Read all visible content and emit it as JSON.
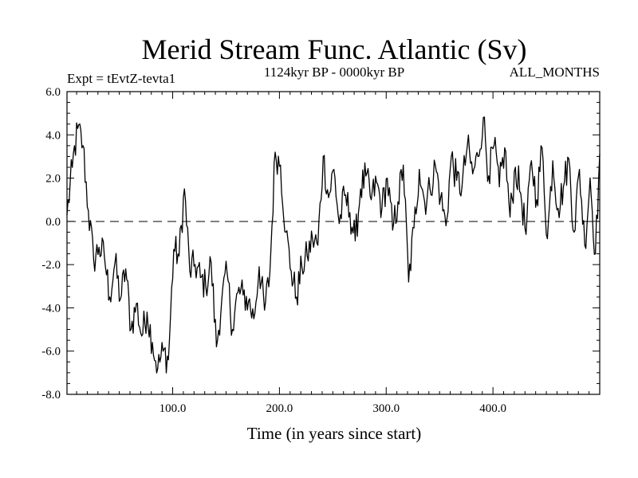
{
  "chart_data": {
    "type": "line",
    "title": "Merid Stream Func. Atlantic (Sv)",
    "subtitle_left": "Expt = tEvtZ-tevta1",
    "subtitle_center": "1124kyr BP - 0000kyr BP",
    "subtitle_right": "ALL_MONTHS",
    "xlabel": "Time (in years since start)",
    "ylabel": "",
    "xlim": [
      1,
      500
    ],
    "ylim": [
      -8,
      6
    ],
    "x_ticks": [
      100,
      200,
      300,
      400
    ],
    "x_tick_labels": [
      "100.0",
      "200.0",
      "300.0",
      "400.0"
    ],
    "y_ticks": [
      6,
      4,
      2,
      0,
      -2,
      -4,
      -6,
      -8
    ],
    "y_tick_labels": [
      "6.0",
      "4.0",
      "2.0",
      "0.0",
      "-2.0",
      "-4.0",
      "-6.0",
      "-8.0"
    ],
    "reference_line": {
      "y": 0,
      "style": "dashed"
    },
    "series": [
      {
        "name": "Merid Stream Func. Atlantic",
        "x": [
          1,
          6,
          11,
          16,
          21,
          26,
          31,
          36,
          41,
          46,
          51,
          56,
          61,
          66,
          71,
          76,
          81,
          86,
          91,
          96,
          101,
          106,
          111,
          116,
          121,
          126,
          131,
          136,
          141,
          146,
          151,
          156,
          161,
          166,
          171,
          176,
          181,
          186,
          191,
          196,
          201,
          206,
          211,
          216,
          221,
          226,
          231,
          236,
          241,
          246,
          251,
          256,
          261,
          266,
          271,
          276,
          281,
          286,
          291,
          296,
          301,
          306,
          311,
          316,
          321,
          326,
          331,
          336,
          341,
          346,
          351,
          356,
          361,
          366,
          371,
          376,
          381,
          386,
          391,
          396,
          401,
          406,
          411,
          416,
          421,
          426,
          431,
          436,
          441,
          446,
          451,
          456,
          461,
          466,
          471,
          476,
          481,
          486,
          491,
          496,
          500
        ],
        "values": [
          0.3,
          2.5,
          4.3,
          3.5,
          0.5,
          -1.8,
          -1.2,
          -1.6,
          -3.5,
          -1.9,
          -3.6,
          -2.2,
          -5.0,
          -3.8,
          -5.3,
          -4.2,
          -5.6,
          -6.8,
          -6.0,
          -6.4,
          -1.3,
          -1.6,
          1.5,
          -2.3,
          -2.0,
          -2.6,
          -3.0,
          -1.9,
          -5.8,
          -3.6,
          -2.4,
          -5.0,
          -3.3,
          -3.4,
          -3.7,
          -4.5,
          -2.1,
          -4.1,
          -2.4,
          3.2,
          2.6,
          -0.5,
          -2.3,
          -3.5,
          -2.1,
          -1.6,
          -0.8,
          -1.1,
          3.0,
          1.1,
          2.4,
          -0.1,
          1.2,
          0.4,
          -0.9,
          1.5,
          2.1,
          1.0,
          1.8,
          0.6,
          2.0,
          -0.4,
          0.9,
          2.6,
          -2.8,
          -0.3,
          2.4,
          0.9,
          1.5,
          2.6,
          1.1,
          -0.2,
          3.0,
          1.9,
          1.6,
          3.5,
          2.2,
          3.0,
          4.8,
          2.1,
          3.5,
          1.6,
          3.4,
          0.2,
          2.5,
          1.3,
          -0.6,
          2.8,
          1.0,
          3.4,
          -0.8,
          2.8,
          0.6,
          1.6,
          2.9,
          -0.5,
          2.4,
          -1.1,
          2.0,
          -1.5,
          3.1
        ]
      }
    ]
  }
}
